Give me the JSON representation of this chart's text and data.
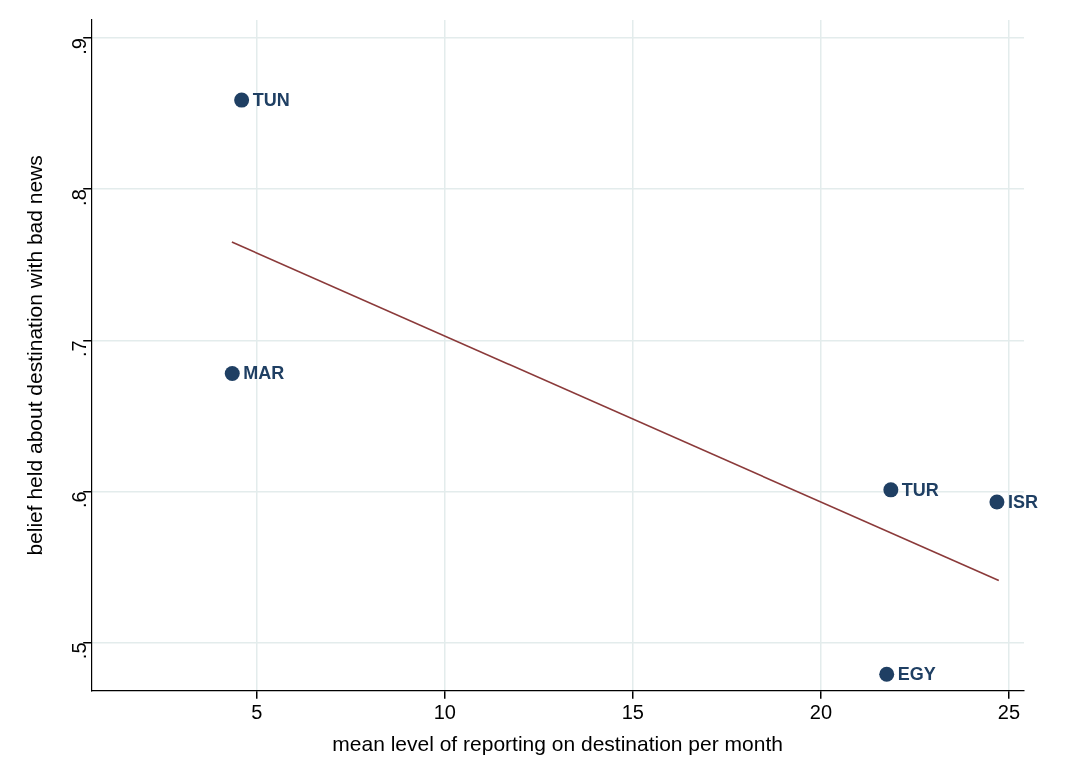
{
  "chart_data": {
    "type": "scatter",
    "xlabel": "mean level of reporting on destination per month",
    "ylabel": "belief held about destination with bad news",
    "xlim": [
      0.6,
      25.4
    ],
    "ylim": [
      0.468,
      0.912
    ],
    "xticks": [
      5,
      10,
      15,
      20,
      25
    ],
    "yticks": [
      {
        "value": 0.5,
        "label": ".5"
      },
      {
        "value": 0.6,
        "label": ".6"
      },
      {
        "value": 0.7,
        "label": ".7"
      },
      {
        "value": 0.8,
        "label": ".8"
      },
      {
        "value": 0.9,
        "label": ".9"
      }
    ],
    "grid": true,
    "legend": false,
    "marker": "circle",
    "series": [
      {
        "color": "#1f3f63",
        "x": [
          4.6,
          4.35,
          21.86,
          24.68,
          21.75
        ],
        "values": [
          0.859,
          0.678,
          0.601,
          0.593,
          0.479
        ]
      },
      {
        "type": "line",
        "color": "#8b3a3a",
        "marker": "none",
        "x": [
          4.34,
          24.73
        ],
        "values": [
          0.765,
          0.541
        ]
      }
    ],
    "annotations": [
      {
        "text": "TUN",
        "x": 4.6,
        "y": 0.859
      },
      {
        "text": "MAR",
        "x": 4.35,
        "y": 0.678
      },
      {
        "text": "TUR",
        "x": 21.86,
        "y": 0.601
      },
      {
        "text": "ISR",
        "x": 24.68,
        "y": 0.593
      },
      {
        "text": "EGY",
        "x": 21.75,
        "y": 0.479
      }
    ]
  }
}
